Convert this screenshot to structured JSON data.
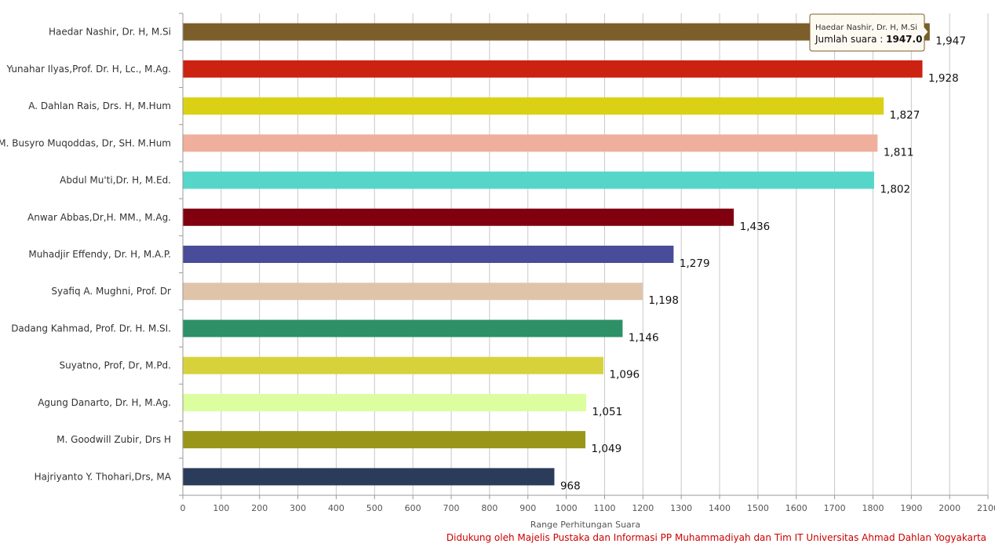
{
  "chart_data": {
    "type": "bar",
    "orientation": "horizontal",
    "title": "",
    "xlabel": "Range Perhitungan Suara",
    "ylabel": "",
    "xlim": [
      0,
      2100
    ],
    "x_ticks": [
      0,
      100,
      200,
      300,
      400,
      500,
      600,
      700,
      800,
      900,
      1000,
      1100,
      1200,
      1300,
      1400,
      1500,
      1600,
      1700,
      1800,
      1900,
      2000,
      2100
    ],
    "grid": true,
    "legend": "none",
    "categories": [
      "Haedar Nashir, Dr. H, M.Si",
      "Yunahar Ilyas,Prof. Dr. H, Lc., M.Ag.",
      "A. Dahlan Rais, Drs. H, M.Hum",
      "M. Busyro Muqoddas, Dr, SH. M.Hum",
      "Abdul Mu'ti,Dr. H, M.Ed.",
      "Anwar Abbas,Dr,H. MM., M.Ag.",
      "Muhadjir Effendy, Dr. H, M.A.P.",
      "Syafiq A. Mughni, Prof. Dr",
      "Dadang Kahmad, Prof. Dr. H. M.SI.",
      "Suyatno, Prof, Dr, M.Pd.",
      "Agung Danarto, Dr. H, M.Ag.",
      "M. Goodwill Zubir, Drs H",
      "Hajriyanto Y. Thohari,Drs, MA"
    ],
    "values": [
      1947,
      1928,
      1827,
      1811,
      1802,
      1436,
      1279,
      1198,
      1146,
      1096,
      1051,
      1049,
      968
    ],
    "value_labels": [
      "1,947",
      "1,928",
      "1,827",
      "1,811",
      "1,802",
      "1,436",
      "1,279",
      "1,198",
      "1,146",
      "1,096",
      "1,051",
      "1,049",
      "968"
    ],
    "colors": [
      "#7b5e2a",
      "#cc2211",
      "#dbd114",
      "#f0ae9c",
      "#56d6c8",
      "#800010",
      "#484c99",
      "#e0c4aa",
      "#2e9066",
      "#d7d23c",
      "#dcfe9e",
      "#99961a",
      "#2b3c5b"
    ],
    "tooltip": {
      "name": "Haedar Nashir, Dr. H, M.Si",
      "value_prefix": "Jumlah suara : ",
      "value": "1947.0",
      "border_color": "#7b5e2a"
    }
  },
  "footer": {
    "credit": "Didukung oleh Majelis Pustaka dan Informasi PP Muhammadiyah dan Tim IT Universitas Ahmad Dahlan Yogyakarta"
  }
}
